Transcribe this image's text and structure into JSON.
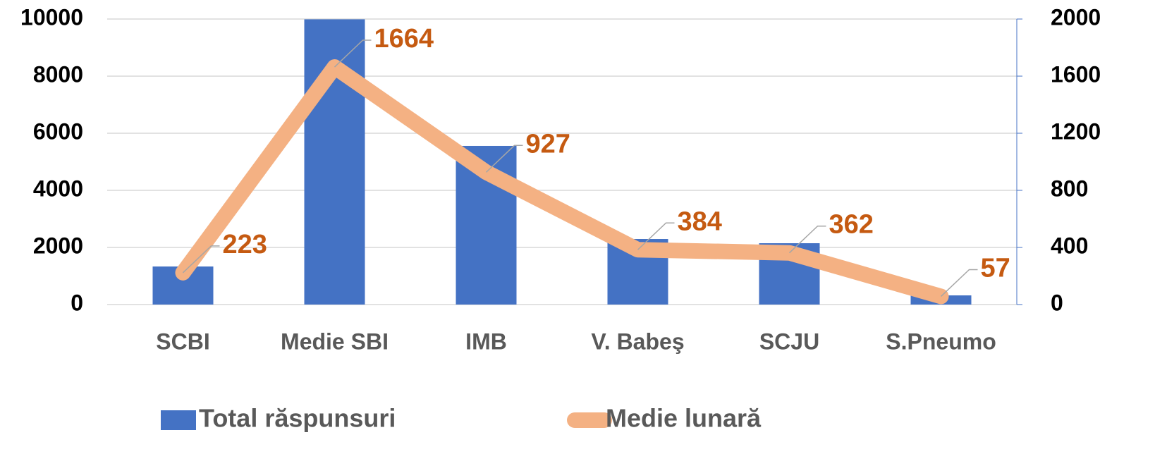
{
  "chart_data": {
    "type": "bar_line",
    "categories": [
      "SCBI",
      "Medie SBI",
      "IMB",
      "V. Babeş",
      "SCJU",
      "S.Pneumo"
    ],
    "series": [
      {
        "name": "Total răspunsuri",
        "color": "#4472c4",
        "type": "bar",
        "values": [
          1333,
          9990,
          5556,
          2296,
          2148,
          321
        ]
      },
      {
        "name": "Medie lunară",
        "color": "#f4b183",
        "type": "line",
        "axis": "y2",
        "values": [
          223,
          1664,
          927,
          384,
          362,
          57
        ]
      }
    ],
    "ylim": [
      0,
      10000
    ],
    "yticks": [
      0,
      2000,
      4000,
      6000,
      8000,
      10000
    ],
    "y2lim": [
      0,
      2000
    ],
    "y2ticks": [
      0,
      400,
      800,
      1200,
      1600,
      2000
    ],
    "grid": true,
    "legend": "bottom"
  }
}
